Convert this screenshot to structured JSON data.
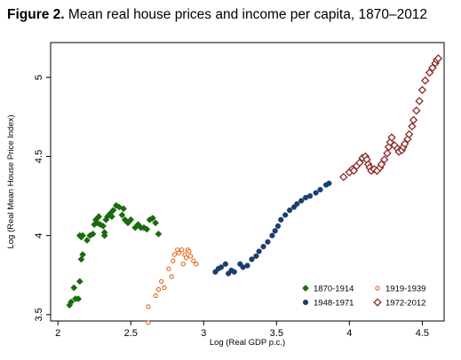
{
  "figure": {
    "label": "Figure 2.",
    "caption": "Mean real house prices and income per capita, 1870–2012"
  },
  "chart_data": {
    "type": "scatter",
    "title": "Figure 2. Mean real house prices and income per capita, 1870–2012",
    "xlabel": "Log (Real GDP p.c.)",
    "ylabel": "Log (Real Mean House Price Index)",
    "xlim": [
      1.95,
      4.65
    ],
    "ylim": [
      3.46,
      5.22
    ],
    "xticks": [
      2,
      2.5,
      3,
      3.5,
      4,
      4.5
    ],
    "xtick_labels": [
      "2",
      "2.5",
      "3",
      "3.5",
      "4",
      "4.5"
    ],
    "yticks": [
      3.5,
      4,
      4.5,
      5
    ],
    "ytick_labels": [
      "3.5",
      "4",
      "4.5",
      "5"
    ],
    "grid": false,
    "legend_position": "bottom-right",
    "series": [
      {
        "name": "1870-1914",
        "marker": "diamond-filled",
        "color": "#1a6b0f",
        "points": [
          [
            2.08,
            3.56
          ],
          [
            2.09,
            3.58
          ],
          [
            2.12,
            3.6
          ],
          [
            2.14,
            3.6
          ],
          [
            2.11,
            3.67
          ],
          [
            2.15,
            3.71
          ],
          [
            2.16,
            3.85
          ],
          [
            2.17,
            3.88
          ],
          [
            2.15,
            4.0
          ],
          [
            2.17,
            4.0
          ],
          [
            2.16,
            3.99
          ],
          [
            2.2,
            3.97
          ],
          [
            2.22,
            4.0
          ],
          [
            2.24,
            4.01
          ],
          [
            2.25,
            4.07
          ],
          [
            2.27,
            4.08
          ],
          [
            2.26,
            4.1
          ],
          [
            2.28,
            4.12
          ],
          [
            2.29,
            4.07
          ],
          [
            2.31,
            4.06
          ],
          [
            2.33,
            4.1
          ],
          [
            2.32,
            4.02
          ],
          [
            2.32,
            4.0
          ],
          [
            2.34,
            4.12
          ],
          [
            2.36,
            4.14
          ],
          [
            2.37,
            4.12
          ],
          [
            2.38,
            4.16
          ],
          [
            2.4,
            4.19
          ],
          [
            2.42,
            4.18
          ],
          [
            2.44,
            4.13
          ],
          [
            2.45,
            4.17
          ],
          [
            2.46,
            4.1
          ],
          [
            2.47,
            4.09
          ],
          [
            2.48,
            4.08
          ],
          [
            2.5,
            4.1
          ],
          [
            2.53,
            4.05
          ],
          [
            2.55,
            4.07
          ],
          [
            2.57,
            4.05
          ],
          [
            2.59,
            4.05
          ],
          [
            2.61,
            4.04
          ],
          [
            2.63,
            4.1
          ],
          [
            2.65,
            4.11
          ],
          [
            2.67,
            4.08
          ],
          [
            2.69,
            4.01
          ]
        ]
      },
      {
        "name": "1919-1939",
        "marker": "circle-hollow",
        "color": "#e8651e",
        "points": [
          [
            2.62,
            3.45
          ],
          [
            2.62,
            3.55
          ],
          [
            2.67,
            3.62
          ],
          [
            2.69,
            3.66
          ],
          [
            2.71,
            3.71
          ],
          [
            2.73,
            3.67
          ],
          [
            2.76,
            3.79
          ],
          [
            2.78,
            3.74
          ],
          [
            2.79,
            3.84
          ],
          [
            2.8,
            3.88
          ],
          [
            2.82,
            3.91
          ],
          [
            2.83,
            3.89
          ],
          [
            2.85,
            3.91
          ],
          [
            2.86,
            3.82
          ],
          [
            2.87,
            3.88
          ],
          [
            2.88,
            3.86
          ],
          [
            2.89,
            3.91
          ],
          [
            2.9,
            3.9
          ],
          [
            2.91,
            3.87
          ],
          [
            2.93,
            3.84
          ],
          [
            2.95,
            3.82
          ]
        ]
      },
      {
        "name": "1948-1971",
        "marker": "circle-filled",
        "color": "#1c3d6e",
        "points": [
          [
            3.08,
            3.77
          ],
          [
            3.1,
            3.79
          ],
          [
            3.12,
            3.8
          ],
          [
            3.15,
            3.82
          ],
          [
            3.17,
            3.76
          ],
          [
            3.19,
            3.78
          ],
          [
            3.21,
            3.77
          ],
          [
            3.25,
            3.82
          ],
          [
            3.27,
            3.8
          ],
          [
            3.3,
            3.81
          ],
          [
            3.33,
            3.85
          ],
          [
            3.36,
            3.87
          ],
          [
            3.38,
            3.9
          ],
          [
            3.41,
            3.93
          ],
          [
            3.44,
            3.96
          ],
          [
            3.47,
            4.0
          ],
          [
            3.49,
            4.03
          ],
          [
            3.51,
            4.06
          ],
          [
            3.53,
            4.1
          ],
          [
            3.56,
            4.13
          ],
          [
            3.59,
            4.16
          ],
          [
            3.62,
            4.18
          ],
          [
            3.64,
            4.2
          ],
          [
            3.67,
            4.22
          ],
          [
            3.7,
            4.24
          ],
          [
            3.73,
            4.25
          ],
          [
            3.77,
            4.27
          ],
          [
            3.8,
            4.29
          ],
          [
            3.84,
            4.32
          ],
          [
            3.86,
            4.33
          ]
        ]
      },
      {
        "name": "1972-2012",
        "marker": "diamond-hollow",
        "color": "#8b2a2a",
        "points": [
          [
            3.96,
            4.37
          ],
          [
            4.0,
            4.4
          ],
          [
            4.02,
            4.42
          ],
          [
            4.03,
            4.41
          ],
          [
            4.05,
            4.44
          ],
          [
            4.07,
            4.46
          ],
          [
            4.09,
            4.49
          ],
          [
            4.11,
            4.5
          ],
          [
            4.12,
            4.48
          ],
          [
            4.13,
            4.45
          ],
          [
            4.14,
            4.43
          ],
          [
            4.15,
            4.41
          ],
          [
            4.17,
            4.42
          ],
          [
            4.19,
            4.41
          ],
          [
            4.21,
            4.43
          ],
          [
            4.22,
            4.45
          ],
          [
            4.24,
            4.48
          ],
          [
            4.26,
            4.52
          ],
          [
            4.27,
            4.56
          ],
          [
            4.28,
            4.59
          ],
          [
            4.29,
            4.62
          ],
          [
            4.31,
            4.57
          ],
          [
            4.33,
            4.55
          ],
          [
            4.34,
            4.53
          ],
          [
            4.36,
            4.54
          ],
          [
            4.37,
            4.56
          ],
          [
            4.38,
            4.58
          ],
          [
            4.4,
            4.61
          ],
          [
            4.41,
            4.64
          ],
          [
            4.43,
            4.69
          ],
          [
            4.44,
            4.73
          ],
          [
            4.46,
            4.79
          ],
          [
            4.48,
            4.85
          ],
          [
            4.5,
            4.92
          ],
          [
            4.52,
            4.98
          ],
          [
            4.55,
            5.03
          ],
          [
            4.57,
            5.06
          ],
          [
            4.59,
            5.09
          ],
          [
            4.6,
            5.11
          ],
          [
            4.61,
            5.12
          ]
        ]
      }
    ]
  }
}
